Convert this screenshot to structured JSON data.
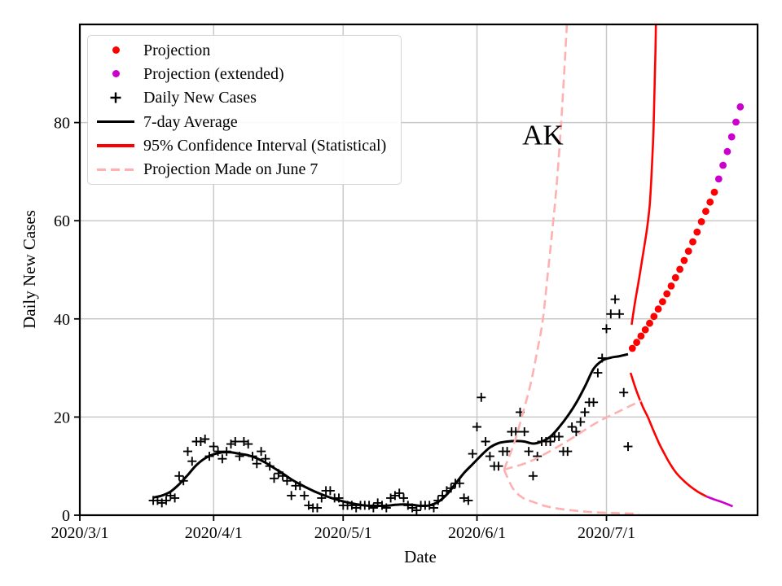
{
  "annotation": {
    "label": "AK",
    "date": "2020-06-16T06:00",
    "value": 77.5
  },
  "axes": {
    "xlabel": "Date",
    "ylabel": "Daily New Cases",
    "xlim": [
      "2020-03-01",
      "2020-08-05"
    ],
    "ylim": [
      0,
      100
    ],
    "grid": true,
    "x_ticks": [
      {
        "date": "2020-03-01",
        "label": "2020/3/1"
      },
      {
        "date": "2020-04-01",
        "label": "2020/4/1"
      },
      {
        "date": "2020-05-01",
        "label": "2020/5/1"
      },
      {
        "date": "2020-06-01",
        "label": "2020/6/1"
      },
      {
        "date": "2020-07-01",
        "label": "2020/7/1"
      }
    ],
    "y_ticks": [
      {
        "value": 0,
        "label": "0"
      },
      {
        "value": 20,
        "label": "20"
      },
      {
        "value": 40,
        "label": "40"
      },
      {
        "value": 60,
        "label": "60"
      },
      {
        "value": 80,
        "label": "80"
      }
    ]
  },
  "palette": {
    "red": "#ff0000",
    "magenta": "#cc00cc",
    "black": "#000000",
    "pink": "#ffb0b0",
    "grid": "#c9c9c9"
  },
  "legend": {
    "entries": [
      {
        "marker": "dot",
        "color_key": "red",
        "label": "Projection"
      },
      {
        "marker": "dot",
        "color_key": "magenta",
        "label": "Projection (extended)"
      },
      {
        "marker": "plus",
        "color_key": "black",
        "label": "Daily New Cases"
      },
      {
        "marker": "line",
        "color_key": "black",
        "label": "7-day Average"
      },
      {
        "marker": "line",
        "color_key": "red",
        "label": "95% Confidence Interval (Statistical)"
      },
      {
        "marker": "dashed",
        "color_key": "pink",
        "label": "Projection Made on June 7"
      }
    ]
  },
  "chart_data": {
    "type": "mixed",
    "title": "",
    "xlabel": "Date",
    "ylabel": "Daily New Cases",
    "series": [
      {
        "name": "Daily New Cases",
        "type": "scatter",
        "marker": "plus",
        "color_key": "black",
        "start_date": "2020-03-18",
        "daily_values": [
          3,
          3,
          2.5,
          3,
          4,
          3.5,
          8,
          7,
          13,
          11,
          15,
          15,
          15.5,
          12,
          14,
          13,
          11.5,
          13,
          14.5,
          15,
          12,
          15,
          14.5,
          12,
          10.5,
          13,
          11.5,
          10,
          7.5,
          8.5,
          8,
          7,
          4,
          6,
          6,
          4,
          2,
          1.5,
          1.5,
          3.5,
          5,
          5,
          3.5,
          3.5,
          2,
          2,
          2,
          1.5,
          2,
          2,
          2,
          1.5,
          2.5,
          2,
          1.5,
          3.5,
          4,
          4.5,
          3.5,
          2,
          1.5,
          1,
          2,
          2,
          2,
          1.5,
          3,
          4,
          5,
          5.5,
          6.5,
          6.5,
          3.5,
          3,
          12.5,
          18,
          24,
          15,
          12,
          10,
          10,
          13,
          13,
          17,
          17,
          21,
          17,
          13,
          8,
          12,
          15,
          15,
          15,
          16,
          16,
          13,
          13,
          18,
          17,
          19,
          21,
          23,
          23,
          29,
          32,
          38,
          41,
          44,
          41,
          25,
          14
        ]
      },
      {
        "name": "7-day Average",
        "type": "line",
        "style": "solid",
        "color_key": "black",
        "width_key": "avg",
        "points": [
          [
            "2020-03-18",
            3.6
          ],
          [
            "2020-03-20",
            4.0
          ],
          [
            "2020-03-22",
            4.8
          ],
          [
            "2020-03-24",
            6.3
          ],
          [
            "2020-03-26",
            8.2
          ],
          [
            "2020-03-28",
            10.2
          ],
          [
            "2020-03-30",
            11.6
          ],
          [
            "2020-04-01",
            12.4
          ],
          [
            "2020-04-03",
            12.8
          ],
          [
            "2020-04-05",
            12.8
          ],
          [
            "2020-04-07",
            12.5
          ],
          [
            "2020-04-09",
            12.2
          ],
          [
            "2020-04-11",
            11.6
          ],
          [
            "2020-04-13",
            10.7
          ],
          [
            "2020-04-15",
            9.6
          ],
          [
            "2020-04-17",
            8.5
          ],
          [
            "2020-04-19",
            7.3
          ],
          [
            "2020-04-21",
            6.3
          ],
          [
            "2020-04-23",
            5.4
          ],
          [
            "2020-04-25",
            4.6
          ],
          [
            "2020-04-27",
            3.9
          ],
          [
            "2020-04-29",
            3.3
          ],
          [
            "2020-05-01",
            2.8
          ],
          [
            "2020-05-03",
            2.4
          ],
          [
            "2020-05-05",
            2.1
          ],
          [
            "2020-05-07",
            1.9
          ],
          [
            "2020-05-09",
            1.9
          ],
          [
            "2020-05-11",
            1.9
          ],
          [
            "2020-05-13",
            2.1
          ],
          [
            "2020-05-15",
            2.2
          ],
          [
            "2020-05-17",
            2.1
          ],
          [
            "2020-05-19",
            1.9
          ],
          [
            "2020-05-21",
            2.0
          ],
          [
            "2020-05-23",
            2.7
          ],
          [
            "2020-05-25",
            4.2
          ],
          [
            "2020-05-27",
            6.4
          ],
          [
            "2020-05-29",
            8.6
          ],
          [
            "2020-05-31",
            10.4
          ],
          [
            "2020-06-02",
            12.2
          ],
          [
            "2020-06-04",
            13.8
          ],
          [
            "2020-06-06",
            14.7
          ],
          [
            "2020-06-08",
            15.0
          ],
          [
            "2020-06-10",
            15.1
          ],
          [
            "2020-06-12",
            15.0
          ],
          [
            "2020-06-14",
            14.6
          ],
          [
            "2020-06-16",
            15.0
          ],
          [
            "2020-06-18",
            16.0
          ],
          [
            "2020-06-20",
            17.9
          ],
          [
            "2020-06-22",
            20.2
          ],
          [
            "2020-06-24",
            22.9
          ],
          [
            "2020-06-26",
            26.2
          ],
          [
            "2020-06-28",
            29.8
          ],
          [
            "2020-06-30",
            31.5
          ],
          [
            "2020-07-02",
            32.1
          ],
          [
            "2020-07-04",
            32.4
          ],
          [
            "2020-07-06",
            32.8
          ]
        ]
      },
      {
        "name": "Projection",
        "type": "scatter",
        "marker": "dot",
        "color_key": "red",
        "start_date": "2020-07-07",
        "daily_values": [
          34,
          35.2,
          36.5,
          37.8,
          39.1,
          40.5,
          42,
          43.5,
          45.1,
          46.7,
          48.4,
          50.1,
          51.9,
          53.8,
          55.7,
          57.7,
          59.8,
          61.9,
          63.8,
          65.8
        ]
      },
      {
        "name": "Projection (extended)",
        "type": "scatter",
        "marker": "dot",
        "color_key": "magenta",
        "start_date": "2020-07-27",
        "daily_values": [
          68.5,
          71.3,
          74.1,
          77.1,
          80.1,
          83.2
        ]
      },
      {
        "name": "95% CI upper bound",
        "type": "line",
        "style": "solid",
        "color_key": "red",
        "width_key": "ci",
        "points": [
          [
            "2020-07-06T20:00",
            38.8
          ],
          [
            "2020-07-07T12:00",
            42.8
          ],
          [
            "2020-07-08T06:00",
            46.6
          ],
          [
            "2020-07-09T00:00",
            50.6
          ],
          [
            "2020-07-09T18:00",
            54.7
          ],
          [
            "2020-07-10T10:00",
            58.5
          ],
          [
            "2020-07-11T00:00",
            63.0
          ],
          [
            "2020-07-11T08:00",
            67.7
          ],
          [
            "2020-07-11T16:00",
            73.5
          ],
          [
            "2020-07-11T22:00",
            79.3
          ],
          [
            "2020-07-12T03:00",
            86.7
          ],
          [
            "2020-07-12T08:00",
            94.2
          ],
          [
            "2020-07-12T11:00",
            100.0
          ]
        ]
      },
      {
        "name": "95% CI lower bound",
        "type": "line",
        "style": "solid",
        "color_key": "red",
        "width_key": "ci",
        "points": [
          [
            "2020-07-06T14:00",
            29.0
          ],
          [
            "2020-07-07T22:00",
            25.4
          ],
          [
            "2020-07-09T10:00",
            22.1
          ],
          [
            "2020-07-10T14:00",
            20.0
          ],
          [
            "2020-07-11T17:00",
            17.6
          ],
          [
            "2020-07-13T05:00",
            14.6
          ],
          [
            "2020-07-14T12:00",
            12.4
          ],
          [
            "2020-07-15T12:00",
            10.8
          ],
          [
            "2020-07-17T00:00",
            8.8
          ],
          [
            "2020-07-18T08:00",
            7.5
          ],
          [
            "2020-07-20T05:00",
            6.0
          ],
          [
            "2020-07-22T03:00",
            4.8
          ],
          [
            "2020-07-24T05:00",
            3.8
          ]
        ]
      },
      {
        "name": "95% CI lower bound (extended)",
        "type": "line",
        "style": "solid",
        "color_key": "magenta",
        "width_key": "ci",
        "points": [
          [
            "2020-07-24T05:00",
            3.8
          ],
          [
            "2020-07-26T00:00",
            3.2
          ],
          [
            "2020-07-28T00:00",
            2.6
          ],
          [
            "2020-07-30T06:00",
            1.8
          ]
        ]
      },
      {
        "name": "June 7 projection upper",
        "type": "line",
        "style": "dashed",
        "color_key": "pink",
        "width_key": "ci",
        "points": [
          [
            "2020-06-07T06:00",
            9.3
          ],
          [
            "2020-06-09T14:00",
            14.6
          ],
          [
            "2020-06-11T12:00",
            20.4
          ],
          [
            "2020-06-13T10:00",
            26.7
          ],
          [
            "2020-06-14T22:00",
            33.3
          ],
          [
            "2020-06-16T05:00",
            39.5
          ],
          [
            "2020-06-17T08:00",
            48.6
          ],
          [
            "2020-06-18T10:00",
            57.7
          ],
          [
            "2020-06-19T10:00",
            66.8
          ],
          [
            "2020-06-20T08:00",
            77.6
          ],
          [
            "2020-06-21T02:00",
            88.4
          ],
          [
            "2020-06-21T20:00",
            100.0
          ]
        ]
      },
      {
        "name": "June 7 projection central",
        "type": "line",
        "style": "dashed",
        "color_key": "pink",
        "width_key": "ci",
        "points": [
          [
            "2020-06-07T06:00",
            9.3
          ],
          [
            "2020-06-13T10:00",
            11.0
          ],
          [
            "2020-06-21T00:00",
            14.6
          ],
          [
            "2020-06-28T10:00",
            18.7
          ],
          [
            "2020-07-04T00:00",
            21.2
          ],
          [
            "2020-07-09T05:00",
            23.4
          ]
        ]
      },
      {
        "name": "June 7 projection lower",
        "type": "line",
        "style": "dashed",
        "color_key": "pink",
        "width_key": "ci",
        "points": [
          [
            "2020-06-07T06:00",
            9.3
          ],
          [
            "2020-06-09T07:00",
            5.5
          ],
          [
            "2020-06-11T12:00",
            3.6
          ],
          [
            "2020-06-14T00:00",
            2.7
          ],
          [
            "2020-06-17T02:00",
            1.8
          ],
          [
            "2020-06-21T00:00",
            1.2
          ],
          [
            "2020-06-26T12:00",
            0.7
          ],
          [
            "2020-07-02T07:00",
            0.45
          ],
          [
            "2020-07-08T12:00",
            0.3
          ]
        ]
      }
    ]
  }
}
